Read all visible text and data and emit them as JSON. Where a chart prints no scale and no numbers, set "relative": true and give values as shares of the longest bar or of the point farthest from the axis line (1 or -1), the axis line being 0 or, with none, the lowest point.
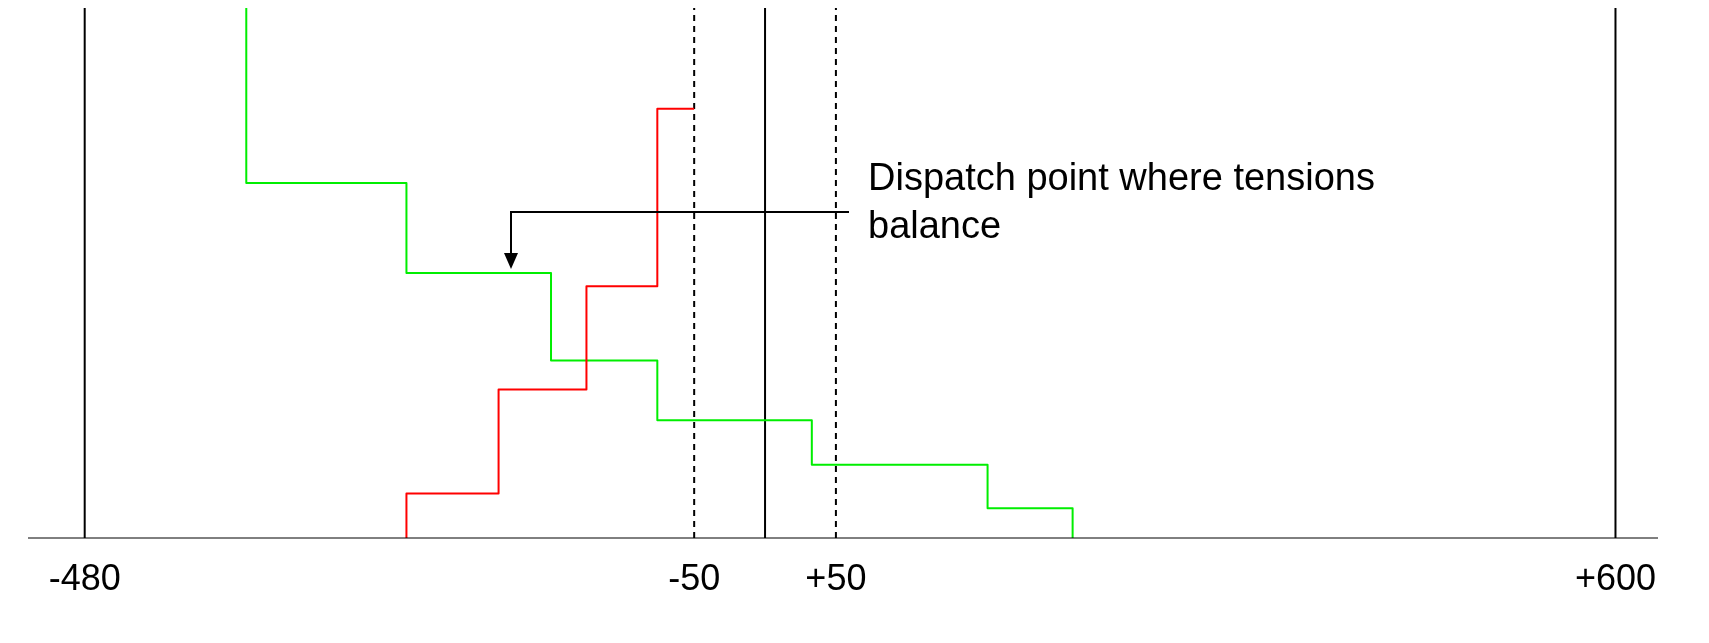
{
  "chart_data": {
    "type": "step",
    "relative": true,
    "annotations": [
      "Dispatch point where tensions balance"
    ],
    "series": [
      {
        "color": "#00ee00",
        "x": [
          -366,
          -366,
          -253,
          -151,
          -76,
          33,
          157,
          217
        ],
        "values": [
          1,
          0.67,
          0.5,
          0.335,
          0.222,
          0.138,
          0.056,
          0
        ]
      },
      {
        "color": "#ff0000",
        "x": [
          -253,
          -253,
          -188,
          -126,
          -76,
          -50
        ],
        "values": [
          0,
          0.084,
          0.28,
          0.475,
          0.81,
          0.81
        ]
      }
    ],
    "xlim": [
      -520,
      630
    ],
    "xticks": [
      -480,
      -50,
      {
        "value": 50,
        "label": "+50"
      },
      {
        "value": 600,
        "label": "+600"
      }
    ],
    "ref_lines": [
      {
        "axis": "x",
        "value": -480,
        "color": "#000000",
        "line_style": "solid"
      },
      {
        "axis": "x",
        "value": 0,
        "color": "#000000",
        "line_style": "solid"
      },
      {
        "axis": "x",
        "value": 600,
        "color": "#000000",
        "line_style": "solid"
      },
      {
        "axis": "x",
        "value": -50,
        "color": "#000000",
        "line_style": "dashed"
      },
      {
        "axis": "x",
        "value": 50,
        "color": "#000000",
        "line_style": "dashed"
      }
    ],
    "tick_labels": "x",
    "grid": false,
    "legend": false
  }
}
